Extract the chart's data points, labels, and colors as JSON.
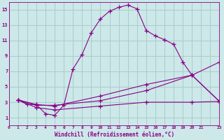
{
  "xlabel": "Windchill (Refroidissement éolien,°C)",
  "bg_color": "#cce8e8",
  "grid_color": "#aacccc",
  "line_color": "#880088",
  "xlim": [
    0,
    23
  ],
  "ylim": [
    0,
    16
  ],
  "xtick_labels": [
    "0",
    "1",
    "2",
    "3",
    "4",
    "5",
    "6",
    "7",
    "8",
    "9",
    "10",
    "11",
    "12",
    "13",
    "14",
    "15",
    "16",
    "17",
    "18",
    "19",
    "20",
    "21",
    "",
    "23"
  ],
  "xtick_pos": [
    0,
    1,
    2,
    3,
    4,
    5,
    6,
    7,
    8,
    9,
    10,
    11,
    12,
    13,
    14,
    15,
    16,
    17,
    18,
    19,
    20,
    21,
    22,
    23
  ],
  "ytick_labels": [
    "1",
    "3",
    "5",
    "7",
    "9",
    "11",
    "13",
    "15"
  ],
  "ytick_pos": [
    1,
    3,
    5,
    7,
    9,
    11,
    13,
    15
  ],
  "series1_x": [
    1,
    2,
    3,
    4,
    5,
    6,
    7,
    8,
    9,
    10,
    11,
    12,
    13,
    14,
    15,
    16,
    17,
    18,
    19,
    20,
    23
  ],
  "series1_y": [
    3.3,
    2.7,
    2.7,
    1.5,
    1.3,
    2.6,
    7.3,
    9.2,
    12.0,
    13.8,
    14.8,
    15.3,
    15.6,
    15.1,
    12.3,
    11.6,
    11.1,
    10.5,
    8.2,
    6.5,
    3.1
  ],
  "series2_x": [
    1,
    3,
    5,
    10,
    15,
    20,
    23
  ],
  "series2_y": [
    3.3,
    2.7,
    2.5,
    3.8,
    5.3,
    6.5,
    8.2
  ],
  "series3_x": [
    1,
    3,
    5,
    10,
    15,
    20,
    23
  ],
  "series3_y": [
    3.3,
    2.6,
    2.6,
    3.2,
    4.5,
    6.5,
    3.1
  ],
  "series4_x": [
    1,
    3,
    5,
    10,
    15,
    20,
    23
  ],
  "series4_y": [
    3.3,
    2.3,
    2.0,
    2.5,
    3.0,
    3.0,
    3.1
  ]
}
